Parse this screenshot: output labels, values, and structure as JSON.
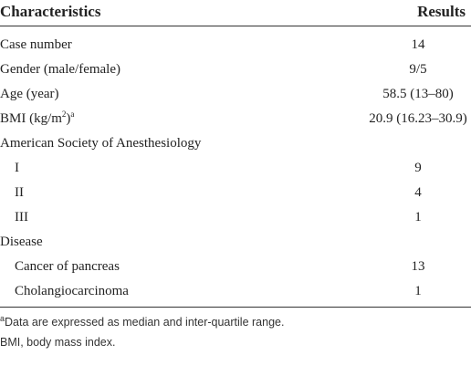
{
  "table": {
    "header": [
      "Characteristics",
      "Results"
    ],
    "rows": [
      [
        "Case number",
        "14"
      ],
      [
        "Gender (male/female)",
        "9/5"
      ],
      [
        "Age (year)",
        "58.5 (13–80)"
      ],
      [
        {
          "text": "BMI (kg/m",
          "sup": "2",
          "after": ")",
          "note": "a"
        },
        "20.9 (16.23–30.9)"
      ],
      [
        "American Society of Anesthesiology",
        null
      ],
      [
        "I",
        "9"
      ],
      [
        "II",
        "4"
      ],
      [
        "III",
        "1"
      ],
      [
        "Disease",
        null
      ],
      [
        "Cancer of pancreas",
        "13"
      ],
      [
        "Cholangiocarcinoma",
        "1"
      ]
    ]
  },
  "footnotes": [
    {
      "mark": "a",
      "text": "Data are expressed as median and inter-quartile range."
    },
    {
      "text": "BMI, body mass index."
    }
  ]
}
